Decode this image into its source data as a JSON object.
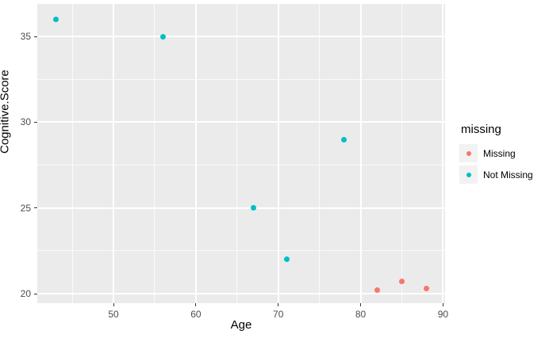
{
  "figure": {
    "background": "#FFFFFF",
    "panel_background": "#EBEBEB",
    "gridline_color": "#FFFFFF",
    "tick_mark_color": "#333333",
    "tick_label_color": "#4D4D4D",
    "axis_title_color": "#000000"
  },
  "chart_data": {
    "type": "scatter",
    "title": "",
    "xlabel": "Age",
    "ylabel": "Cognitive.Score",
    "xlim": [
      40.75,
      90.25
    ],
    "ylim": [
      19.45,
      36.9
    ],
    "x_ticks": [
      50,
      60,
      70,
      80,
      90
    ],
    "y_ticks": [
      20,
      25,
      30,
      35
    ],
    "x_minor_gridlines": [
      45,
      55,
      65,
      75,
      85
    ],
    "y_minor_gridlines": [
      22.5,
      27.5,
      32.5
    ],
    "grid": true,
    "legend_position": "right",
    "legend_title": "missing",
    "series": [
      {
        "name": "Missing",
        "color": "#F8766D",
        "points": [
          {
            "x": 82,
            "y": 20.2
          },
          {
            "x": 85,
            "y": 20.7
          },
          {
            "x": 88,
            "y": 20.3
          }
        ]
      },
      {
        "name": "Not Missing",
        "color": "#00BFC4",
        "points": [
          {
            "x": 43,
            "y": 36
          },
          {
            "x": 56,
            "y": 35
          },
          {
            "x": 67,
            "y": 25
          },
          {
            "x": 71,
            "y": 22
          },
          {
            "x": 78,
            "y": 29
          }
        ]
      }
    ]
  }
}
